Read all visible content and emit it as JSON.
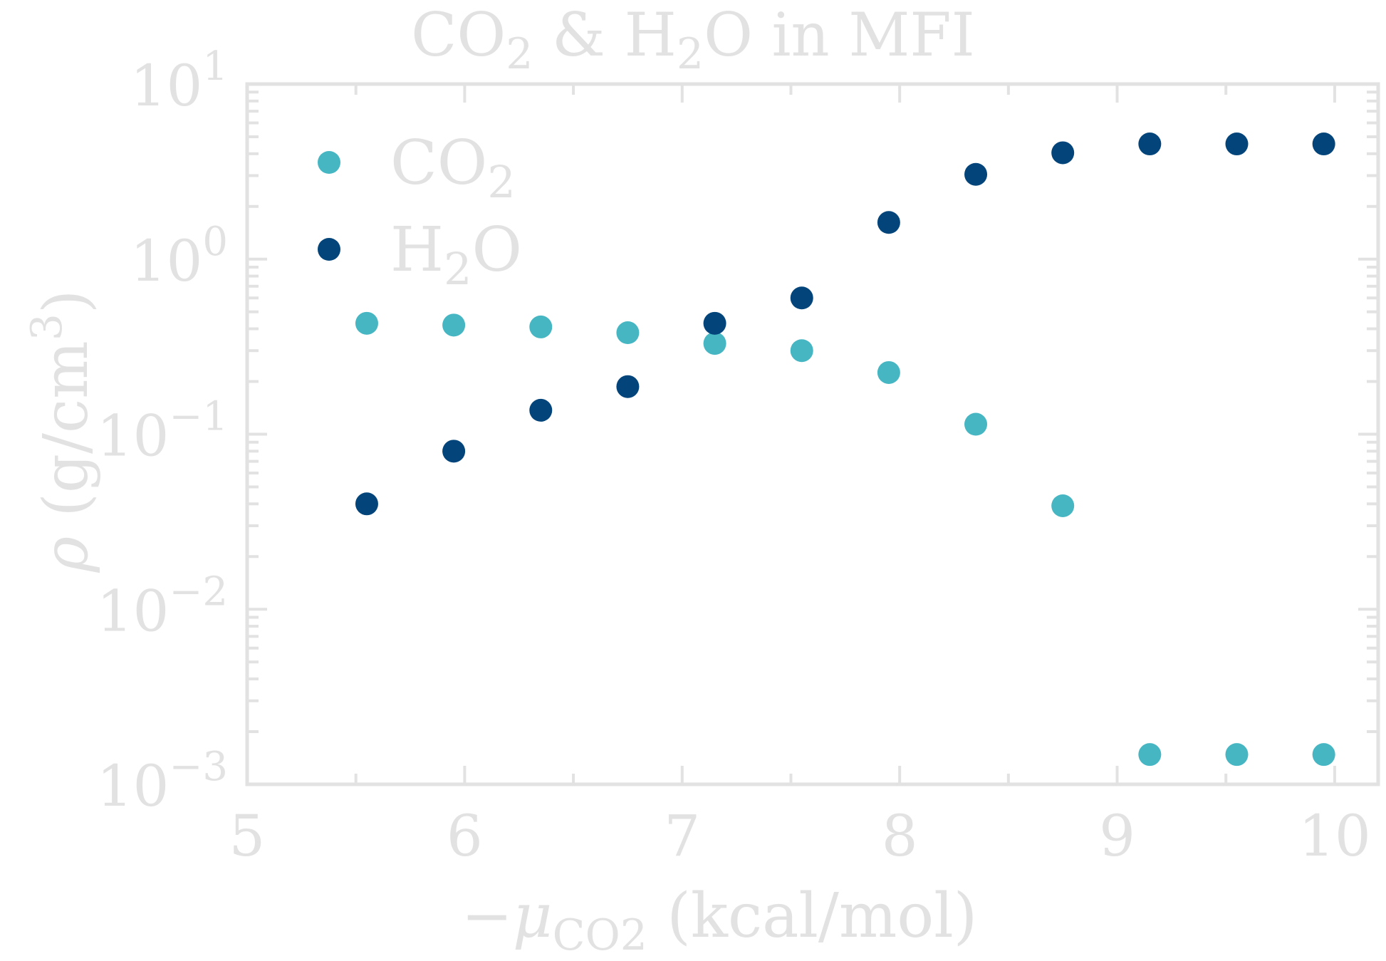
{
  "chart_data": {
    "type": "scatter",
    "title": {
      "parts": [
        {
          "text": "CO",
          "sub": false
        },
        {
          "text": "2",
          "sub": true
        },
        {
          "text": " & H",
          "sub": false
        },
        {
          "text": "2",
          "sub": true
        },
        {
          "text": "O in MFI",
          "sub": false
        }
      ]
    },
    "xlabel": {
      "prefix": "−μ",
      "subscript": "CO2",
      "suffix": " (kcal/mol)"
    },
    "ylabel": {
      "symbol": "ρ",
      "text": " (g/cm",
      "superscript": "3",
      "close": ")"
    },
    "xlim": [
      5,
      10.2
    ],
    "ylim": [
      0.001,
      10
    ],
    "yscale": "log",
    "xticks": [
      5,
      6,
      7,
      8,
      9,
      10
    ],
    "yticks": [
      {
        "base": "10",
        "exp": "1",
        "value": 10
      },
      {
        "base": "10",
        "exp": "0",
        "value": 1
      },
      {
        "base": "10",
        "exp": "−1",
        "value": 0.1
      },
      {
        "base": "10",
        "exp": "−2",
        "value": 0.01
      },
      {
        "base": "10",
        "exp": "−3",
        "value": 0.001
      }
    ],
    "grid": false,
    "legend_position": "top-left",
    "colors": {
      "co2": "#46b6c3",
      "h2o": "#03457a",
      "axis": "#e2e2e2",
      "background": "#ffffff"
    },
    "series": [
      {
        "key": "co2",
        "name_parts": [
          {
            "text": "CO",
            "sub": false
          },
          {
            "text": "2",
            "sub": true
          }
        ],
        "color": "#46b6c3",
        "x": [
          5.55,
          5.95,
          6.35,
          6.75,
          7.15,
          7.55,
          7.95,
          8.35,
          8.75,
          9.15,
          9.55,
          9.95
        ],
        "y": [
          0.43,
          0.42,
          0.41,
          0.38,
          0.33,
          0.3,
          0.225,
          0.114,
          0.039,
          0.00148,
          0.00148,
          0.00148
        ]
      },
      {
        "key": "h2o",
        "name_parts": [
          {
            "text": "H",
            "sub": false
          },
          {
            "text": "2",
            "sub": true
          },
          {
            "text": "O",
            "sub": false
          }
        ],
        "color": "#03457a",
        "x": [
          5.55,
          5.95,
          6.35,
          6.75,
          7.15,
          7.55,
          7.95,
          8.35,
          8.75,
          9.15,
          9.55,
          9.95
        ],
        "y": [
          0.04,
          0.08,
          0.137,
          0.187,
          0.43,
          0.6,
          1.62,
          3.05,
          4.05,
          4.55,
          4.55,
          4.55
        ]
      }
    ]
  }
}
